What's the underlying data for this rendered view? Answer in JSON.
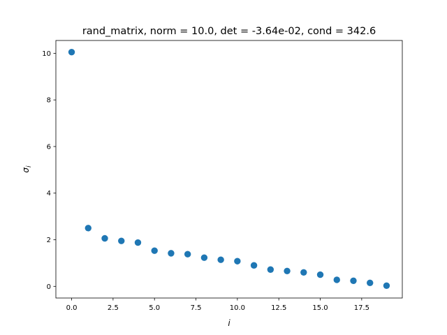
{
  "chart_data": {
    "type": "scatter",
    "title": "rand_matrix, norm = 10.0, det = -3.64e-02, cond = 342.6",
    "xlabel": "i",
    "ylabel": "σ_i",
    "xlim": [
      -0.95,
      19.95
    ],
    "ylim": [
      -0.5,
      10.55
    ],
    "xticks": [
      0.0,
      2.5,
      5.0,
      7.5,
      10.0,
      12.5,
      15.0,
      17.5
    ],
    "xtick_labels": [
      "0.0",
      "2.5",
      "5.0",
      "7.5",
      "10.0",
      "12.5",
      "15.0",
      "17.5"
    ],
    "yticks": [
      0,
      2,
      4,
      6,
      8,
      10
    ],
    "ytick_labels": [
      "0",
      "2",
      "4",
      "6",
      "8",
      "10"
    ],
    "grid": false,
    "series": [
      {
        "color": "#1f77b4",
        "x": [
          0,
          1,
          2,
          3,
          4,
          5,
          6,
          7,
          8,
          9,
          10,
          11,
          12,
          13,
          14,
          15,
          16,
          17,
          18,
          19
        ],
        "y": [
          10.05,
          2.5,
          2.06,
          1.95,
          1.88,
          1.53,
          1.42,
          1.38,
          1.23,
          1.14,
          1.08,
          0.9,
          0.72,
          0.66,
          0.6,
          0.5,
          0.28,
          0.24,
          0.15,
          0.03
        ]
      }
    ]
  }
}
